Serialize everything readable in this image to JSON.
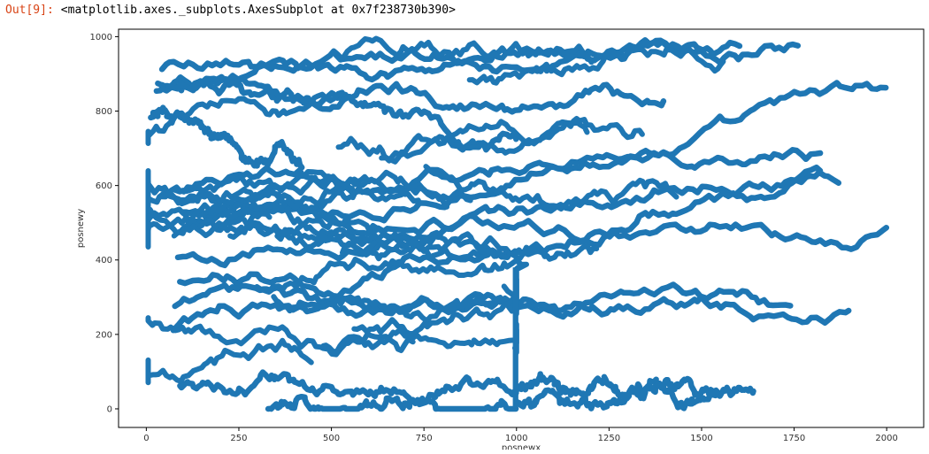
{
  "cell": {
    "prompt": "Out[9]:",
    "repr": "<matplotlib.axes._subplots.AxesSubplot at 0x7f238730b390>"
  },
  "chart_data": {
    "type": "scatter",
    "xlabel": "posnewx",
    "ylabel": "posnewy",
    "xlim": [
      -75,
      2100
    ],
    "ylim": [
      -50,
      1020
    ],
    "x_ticks": [
      0,
      250,
      500,
      750,
      1000,
      1250,
      1500,
      1750,
      2000
    ],
    "y_ticks": [
      0,
      200,
      400,
      600,
      800,
      1000
    ],
    "marker_color": "#1f77b4",
    "grid": false,
    "description_of_points": "dense random-walk trajectories of many agents",
    "trajectories": [
      {
        "start": [
          15,
          795
        ],
        "end": [
          420,
          625
        ]
      },
      {
        "start": [
          30,
          880
        ],
        "end": [
          1000,
          700
        ]
      },
      {
        "start": [
          25,
          850
        ],
        "end": [
          1400,
          830
        ]
      },
      {
        "start": [
          40,
          920
        ],
        "end": [
          1760,
          975
        ]
      },
      {
        "start": [
          60,
          860
        ],
        "end": [
          1600,
          1000
        ]
      },
      {
        "start": [
          75,
          590
        ],
        "end": [
          1820,
          680
        ]
      },
      {
        "start": [
          80,
          480
        ],
        "end": [
          2000,
          840
        ]
      },
      {
        "start": [
          95,
          520
        ],
        "end": [
          2000,
          470
        ]
      },
      {
        "start": [
          85,
          395
        ],
        "end": [
          1870,
          650
        ]
      },
      {
        "start": [
          90,
          340
        ],
        "end": [
          1900,
          265
        ]
      },
      {
        "start": [
          80,
          270
        ],
        "end": [
          1740,
          285
        ]
      },
      {
        "start": [
          75,
          200
        ],
        "end": [
          1820,
          630
        ]
      },
      {
        "start": [
          90,
          50
        ],
        "end": [
          1000,
          60
        ]
      },
      {
        "start": [
          330,
          5
        ],
        "end": [
          1000,
          0
        ]
      },
      {
        "start": [
          1000,
          10
        ],
        "end": [
          1640,
          50
        ]
      },
      {
        "start": [
          1000,
          60
        ],
        "end": [
          1540,
          55
        ]
      }
    ]
  }
}
